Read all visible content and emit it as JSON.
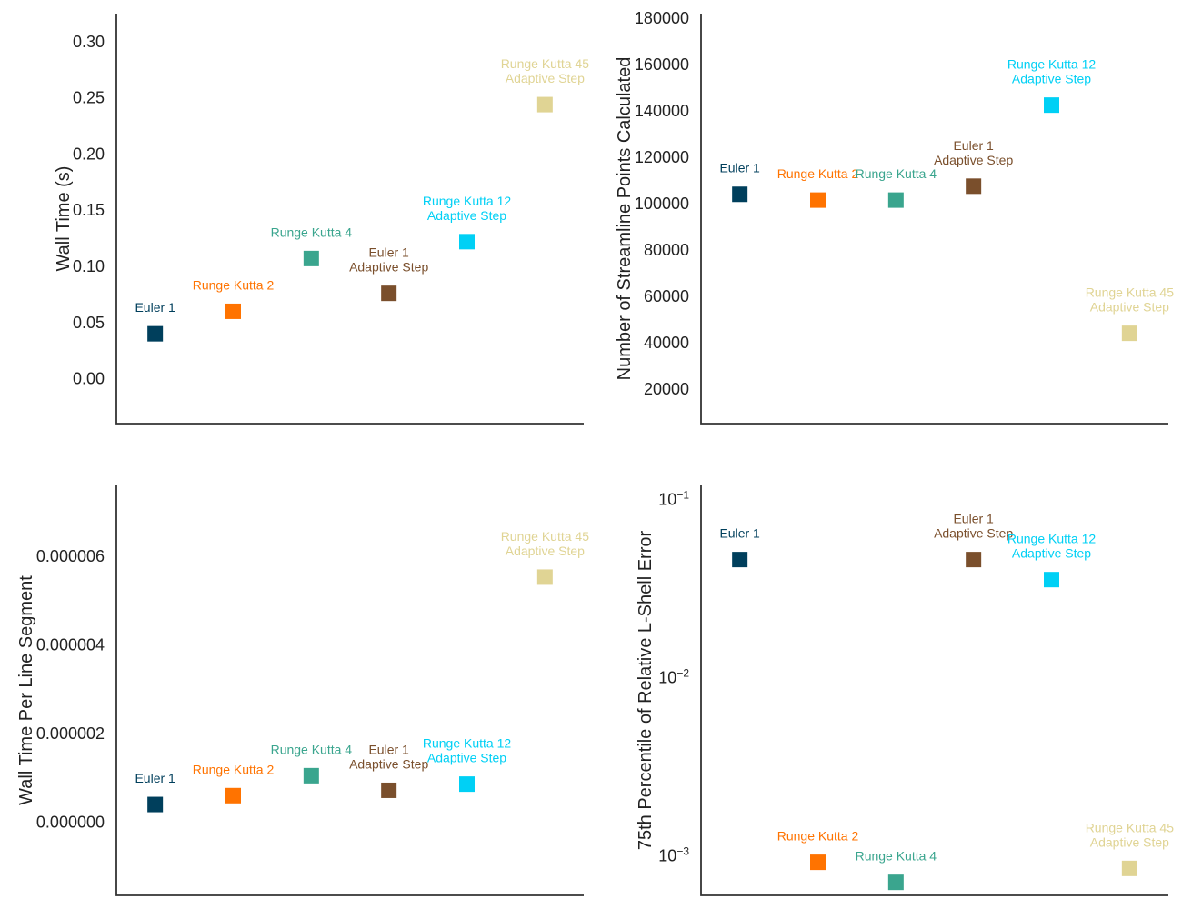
{
  "chart_data": [
    {
      "type": "scatter",
      "ylabel": "Wall Time (s)",
      "yscale": "linear",
      "ylim": [
        -0.04,
        0.325
      ],
      "yticks": [
        {
          "v": 0.0,
          "label": "0.00"
        },
        {
          "v": 0.05,
          "label": "0.05"
        },
        {
          "v": 0.1,
          "label": "0.10"
        },
        {
          "v": 0.15,
          "label": "0.15"
        },
        {
          "v": 0.2,
          "label": "0.20"
        },
        {
          "v": 0.25,
          "label": "0.25"
        },
        {
          "v": 0.3,
          "label": "0.30"
        }
      ],
      "grid": false,
      "points": [
        {
          "name": [
            "Euler 1"
          ],
          "color": "#003f5c",
          "y": 0.04
        },
        {
          "name": [
            "Runge Kutta 2"
          ],
          "color": "#ff7300",
          "y": 0.06
        },
        {
          "name": [
            "Runge Kutta 4"
          ],
          "color": "#3aa58e",
          "y": 0.107
        },
        {
          "name": [
            "Euler 1",
            "Adaptive Step"
          ],
          "color": "#7a4f2c",
          "y": 0.076
        },
        {
          "name": [
            "Runge Kutta 12",
            "Adaptive Step"
          ],
          "color": "#00d0f5",
          "y": 0.122
        },
        {
          "name": [
            "Runge Kutta 45",
            "Adaptive Step"
          ],
          "color": "#e0d494",
          "y": 0.244
        }
      ]
    },
    {
      "type": "scatter",
      "ylabel": "Number of Streamline Points Calculated",
      "yscale": "linear",
      "ylim": [
        5000,
        182000
      ],
      "yticks": [
        {
          "v": 20000,
          "label": "20000"
        },
        {
          "v": 40000,
          "label": "40000"
        },
        {
          "v": 60000,
          "label": "60000"
        },
        {
          "v": 80000,
          "label": "80000"
        },
        {
          "v": 100000,
          "label": "100000"
        },
        {
          "v": 120000,
          "label": "120000"
        },
        {
          "v": 140000,
          "label": "140000"
        },
        {
          "v": 160000,
          "label": "160000"
        },
        {
          "v": 180000,
          "label": "180000"
        }
      ],
      "grid": false,
      "points": [
        {
          "name": [
            "Euler 1"
          ],
          "color": "#003f5c",
          "y": 104000
        },
        {
          "name": [
            "Runge Kutta 2"
          ],
          "color": "#ff7300",
          "y": 101500
        },
        {
          "name": [
            "Runge Kutta 4"
          ],
          "color": "#3aa58e",
          "y": 101500
        },
        {
          "name": [
            "Euler 1",
            "Adaptive Step"
          ],
          "color": "#7a4f2c",
          "y": 107500
        },
        {
          "name": [
            "Runge Kutta 12",
            "Adaptive Step"
          ],
          "color": "#00d0f5",
          "y": 142500
        },
        {
          "name": [
            "Runge Kutta 45",
            "Adaptive Step"
          ],
          "color": "#e0d494",
          "y": 44000
        }
      ]
    },
    {
      "type": "scatter",
      "ylabel": "Wall Time Per Line Segment",
      "yscale": "linear",
      "ylim": [
        -1.65e-06,
        7.6e-06
      ],
      "yticks": [
        {
          "v": 0.0,
          "label": "0.000000"
        },
        {
          "v": 2e-06,
          "label": "0.000002"
        },
        {
          "v": 4e-06,
          "label": "0.000004"
        },
        {
          "v": 6e-06,
          "label": "0.000006"
        }
      ],
      "grid": false,
      "points": [
        {
          "name": [
            "Euler 1"
          ],
          "color": "#003f5c",
          "y": 4e-07
        },
        {
          "name": [
            "Runge Kutta 2"
          ],
          "color": "#ff7300",
          "y": 6e-07
        },
        {
          "name": [
            "Runge Kutta 4"
          ],
          "color": "#3aa58e",
          "y": 1.05e-06
        },
        {
          "name": [
            "Euler 1",
            "Adaptive Step"
          ],
          "color": "#7a4f2c",
          "y": 7.2e-07
        },
        {
          "name": [
            "Runge Kutta 12",
            "Adaptive Step"
          ],
          "color": "#00d0f5",
          "y": 8.6e-07
        },
        {
          "name": [
            "Runge Kutta 45",
            "Adaptive Step"
          ],
          "color": "#e0d494",
          "y": 5.53e-06
        }
      ]
    },
    {
      "type": "scatter",
      "ylabel": "75th Percentile of Relative L-Shell Error",
      "yscale": "log",
      "ylim": [
        0.0006,
        0.12
      ],
      "yticks": [
        {
          "v": 0.1,
          "base": "10",
          "exp": "−1"
        },
        {
          "v": 0.01,
          "base": "10",
          "exp": "−2"
        },
        {
          "v": 0.001,
          "base": "10",
          "exp": "−3"
        }
      ],
      "grid": false,
      "points": [
        {
          "name": [
            "Euler 1"
          ],
          "color": "#003f5c",
          "y": 0.046
        },
        {
          "name": [
            "Runge Kutta 2"
          ],
          "color": "#ff7300",
          "y": 0.00092
        },
        {
          "name": [
            "Runge Kutta 4"
          ],
          "color": "#3aa58e",
          "y": 0.00071
        },
        {
          "name": [
            "Euler 1",
            "Adaptive Step"
          ],
          "color": "#7a4f2c",
          "y": 0.046
        },
        {
          "name": [
            "Runge Kutta 12",
            "Adaptive Step"
          ],
          "color": "#00d0f5",
          "y": 0.0355
        },
        {
          "name": [
            "Runge Kutta 45",
            "Adaptive Step"
          ],
          "color": "#e0d494",
          "y": 0.00085
        }
      ]
    }
  ]
}
